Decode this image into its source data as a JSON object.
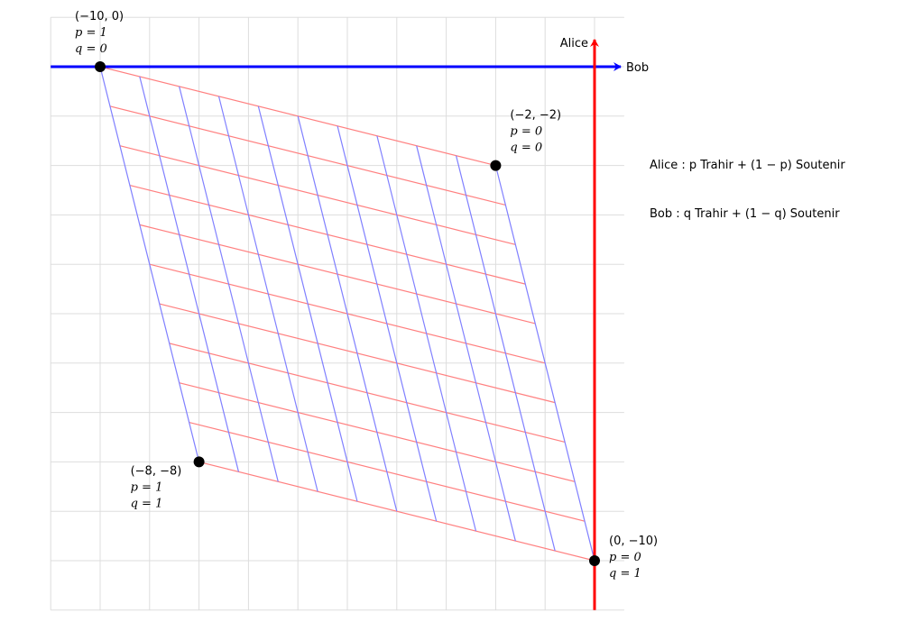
{
  "axes": {
    "x_label": "Bob",
    "y_label": "Alice",
    "x_color": "#0000ff",
    "y_color": "#ff0000",
    "x_range": [
      -11,
      0.6
    ],
    "y_range": [
      -11,
      1
    ]
  },
  "grid": {
    "show": true,
    "step": 1,
    "color": "#dddddd"
  },
  "vertices": [
    {
      "id": "v1",
      "coords": "(−10, 0)",
      "p": "p = 1",
      "q": "q = 0",
      "x": -10,
      "y": 0
    },
    {
      "id": "v2",
      "coords": "(−2, −2)",
      "p": "p = 0",
      "q": "q = 0",
      "x": -2,
      "y": -2
    },
    {
      "id": "v3",
      "coords": "(−8, −8)",
      "p": "p = 1",
      "q": "q = 1",
      "x": -8,
      "y": -8
    },
    {
      "id": "v4",
      "coords": "(0, −10)",
      "p": "p = 0",
      "q": "q = 1",
      "x": 0,
      "y": -10
    }
  ],
  "mesh": {
    "divisions": 10,
    "p_lines_color": "#ff8080",
    "q_lines_color": "#8080ff"
  },
  "strategies": {
    "alice": "Alice : p Trahir + (1 − p) Soutenir",
    "bob": "Bob : q Trahir + (1 − q) Soutenir"
  }
}
